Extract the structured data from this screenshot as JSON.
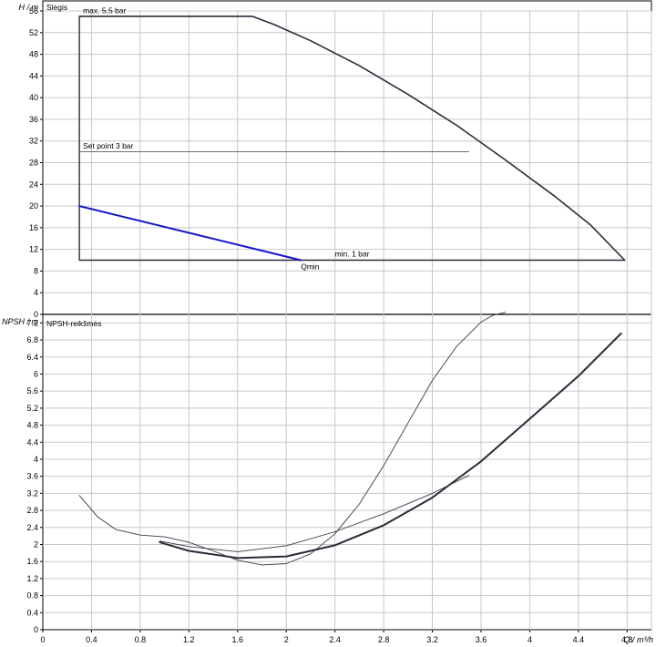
{
  "chart_data": [
    {
      "type": "line",
      "title": "Slėgis",
      "ylabel": "H / m",
      "xlim": [
        0,
        5
      ],
      "ylim": [
        0,
        56
      ],
      "xticks": [
        0,
        0.4,
        0.8,
        1.2,
        1.6,
        2,
        2.4,
        2.8,
        3.2,
        3.6,
        4,
        4.4,
        4.8
      ],
      "xtick_labels": [
        "0",
        "0.4",
        "0.8",
        "1.2",
        "1.6",
        "2",
        "2.4",
        "2.8",
        "3.2",
        "3.6",
        "4",
        "4.4",
        "4.8"
      ],
      "yticks": [
        0,
        4,
        8,
        12,
        16,
        20,
        24,
        28,
        32,
        36,
        40,
        44,
        48,
        52,
        56
      ],
      "ytick_labels": [
        "0",
        "4",
        "8",
        "12",
        "16",
        "20",
        "24",
        "28",
        "32",
        "36",
        "40",
        "44",
        "48",
        "52",
        "56"
      ],
      "grid": true,
      "series": [
        {
          "color": "#2b2b3a",
          "width": 1.6,
          "x": [
            0.3,
            1.72,
            1.9,
            2.2,
            2.6,
            3.0,
            3.4,
            3.8,
            4.2,
            4.5,
            4.78
          ],
          "y": [
            55,
            55,
            53.5,
            50.5,
            45.9,
            40.6,
            34.9,
            28.5,
            21.9,
            16.5,
            10
          ]
        },
        {
          "color": "#2b2b3a",
          "width": 1.4,
          "x": [
            0.3,
            0.3,
            4.78
          ],
          "y": [
            55,
            10,
            10
          ]
        },
        {
          "color": "#5a5a66",
          "width": 0.9,
          "x": [
            0.3,
            3.5
          ],
          "y": [
            30,
            30
          ]
        },
        {
          "color": "#1515c8",
          "width": 2,
          "x": [
            0.3,
            2.12
          ],
          "y": [
            20,
            10
          ]
        }
      ],
      "annotations": [
        {
          "text": "max. 5,5 bar",
          "x": 0.33,
          "y": 55.6
        },
        {
          "text": "Set point 3 bar",
          "x": 0.33,
          "y": 30.6
        },
        {
          "text": "min. 1 bar",
          "x": 2.4,
          "y": 10.7
        },
        {
          "text": "Qmin",
          "x": 2.12,
          "y": 8.3
        }
      ]
    },
    {
      "type": "line",
      "title": "NPSH-reikšmės",
      "ylabel": "NPSH / m",
      "xlabel": "Q / m³/h",
      "xlim": [
        0,
        5
      ],
      "ylim": [
        0,
        7.4
      ],
      "xticks": [
        0,
        0.4,
        0.8,
        1.2,
        1.6,
        2,
        2.4,
        2.8,
        3.2,
        3.6,
        4,
        4.4,
        4.8
      ],
      "xtick_labels": [
        "0",
        "0.4",
        "0.8",
        "1.2",
        "1.6",
        "2",
        "2.4",
        "2.8",
        "3.2",
        "3.6",
        "4",
        "4.4",
        "4.8"
      ],
      "yticks": [
        0,
        0.4,
        0.8,
        1.2,
        1.6,
        2,
        2.4,
        2.8,
        3.2,
        3.6,
        4,
        4.4,
        4.8,
        5.2,
        5.6,
        6,
        6.4,
        6.8,
        7.2
      ],
      "ytick_labels": [
        "0",
        "0.4",
        "0.8",
        "1.2",
        "1.6",
        "2",
        "2.4",
        "2.8",
        "3.2",
        "3.6",
        "4",
        "4.4",
        "4.8",
        "5.2",
        "5.6",
        "6",
        "6.4",
        "6.8",
        "7.2"
      ],
      "grid": true,
      "series": [
        {
          "color": "#2b2b3a",
          "width": 2,
          "x": [
            0.96,
            1.2,
            1.6,
            2.0,
            2.4,
            2.8,
            3.2,
            3.6,
            4.0,
            4.4,
            4.75
          ],
          "y": [
            2.05,
            1.85,
            1.68,
            1.72,
            1.98,
            2.45,
            3.1,
            3.95,
            4.95,
            5.95,
            6.95
          ]
        },
        {
          "color": "#3a3a44",
          "width": 0.9,
          "x": [
            0.3,
            0.45,
            0.6,
            0.8,
            1.0,
            1.2,
            1.4,
            1.6,
            1.8,
            2.0,
            2.2,
            2.4,
            2.6,
            2.8,
            3.0,
            3.2,
            3.4,
            3.6,
            3.7,
            3.8
          ],
          "y": [
            3.15,
            2.65,
            2.35,
            2.22,
            2.18,
            2.05,
            1.85,
            1.63,
            1.52,
            1.55,
            1.78,
            2.25,
            2.95,
            3.85,
            4.85,
            5.85,
            6.65,
            7.22,
            7.38,
            7.45
          ]
        },
        {
          "color": "#3a3a44",
          "width": 0.9,
          "x": [
            0.96,
            1.2,
            1.6,
            2.0,
            2.4,
            2.8,
            3.2,
            3.5
          ],
          "y": [
            2.08,
            1.95,
            1.83,
            1.97,
            2.3,
            2.72,
            3.2,
            3.62
          ]
        }
      ]
    }
  ]
}
